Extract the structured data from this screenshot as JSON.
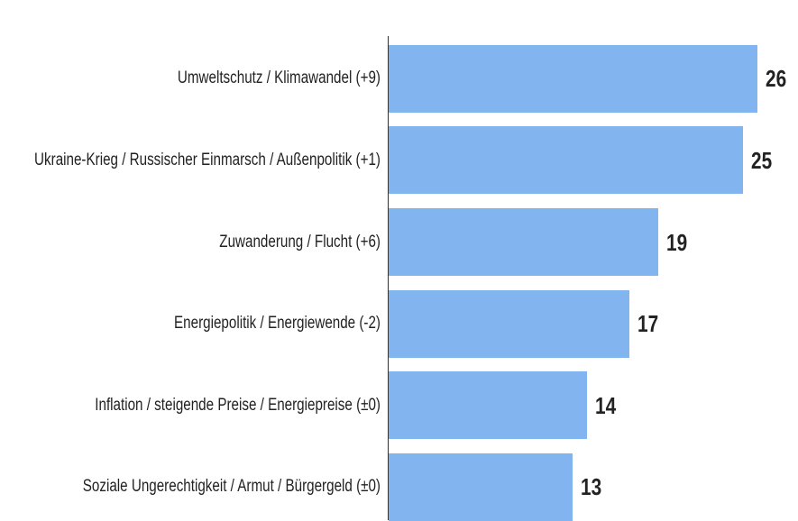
{
  "chart_data": {
    "type": "bar",
    "orientation": "horizontal",
    "categories": [
      "Umweltschutz / Klimawandel (+9)",
      "Ukraine-Krieg / Russischer Einmarsch / Außenpolitik (+1)",
      "Zuwanderung / Flucht (+6)",
      "Energiepolitik / Energiewende (-2)",
      "Inflation / steigende Preise / Energiepreise (±0)",
      "Soziale Ungerechtigkeit / Armut / Bürgergeld (±0)"
    ],
    "values": [
      26,
      25,
      19,
      17,
      14,
      13
    ],
    "color": "#82b4ef",
    "xlim": [
      0,
      28
    ]
  }
}
